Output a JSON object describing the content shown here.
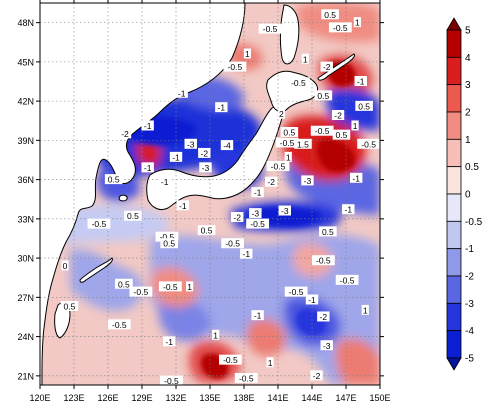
{
  "map": {
    "lat_labels": [
      "48N",
      "45N",
      "42N",
      "39N",
      "36N",
      "33N",
      "30N",
      "27N",
      "24N",
      "21N"
    ],
    "lon_labels": [
      "120E",
      "123E",
      "126E",
      "129E",
      "132E",
      "135E",
      "138E",
      "141E",
      "144E",
      "147E",
      "150E"
    ],
    "lat_range": [
      20,
      50
    ],
    "lon_range": [
      120,
      150
    ],
    "colors": {
      "strong_pos": "#b40000",
      "pos": "#e04a4a",
      "weak_pos": "#f3a6a0",
      "faint_pos": "#fbd9d5",
      "faint_neg": "#d9dcf5",
      "weak_neg": "#9fa6ea",
      "neg": "#4b57e0",
      "strong_neg": "#0a1ed2",
      "land": "#ffffff",
      "coast": "#000000"
    },
    "contour_labels": [
      {
        "text": "-0.5",
        "lon": 131.2,
        "lat": 31.6
      },
      {
        "text": "-0.5",
        "lon": 131.5,
        "lat": 27.8
      },
      {
        "text": "-0.5",
        "lon": 127.0,
        "lat": 24.9
      },
      {
        "text": "-1",
        "lon": 131.4,
        "lat": 23.6
      },
      {
        "text": "0.5",
        "lon": 127.4,
        "lat": 28.0
      },
      {
        "text": "0.5",
        "lon": 122.6,
        "lat": 26.3
      },
      {
        "text": "0",
        "lon": 122.2,
        "lat": 29.4
      },
      {
        "text": "-1",
        "lon": 138.2,
        "lat": 30.3
      },
      {
        "text": "-0.5",
        "lon": 139.2,
        "lat": 32.6
      },
      {
        "text": "-3",
        "lon": 141.6,
        "lat": 33.6
      },
      {
        "text": "-2",
        "lon": 137.4,
        "lat": 33.1
      },
      {
        "text": "-0.5",
        "lon": 147.1,
        "lat": 28.3
      },
      {
        "text": "-1",
        "lon": 144.0,
        "lat": 26.8
      },
      {
        "text": "-2",
        "lon": 145.0,
        "lat": 25.5
      },
      {
        "text": "-3",
        "lon": 145.3,
        "lat": 23.3
      },
      {
        "text": "-0.5",
        "lon": 136.8,
        "lat": 22.2
      },
      {
        "text": "-0.5",
        "lon": 138.2,
        "lat": 20.8
      },
      {
        "text": "-2",
        "lon": 144.4,
        "lat": 21.0
      },
      {
        "text": "-0.5",
        "lon": 131.6,
        "lat": 20.6
      },
      {
        "text": "-1",
        "lon": 139.2,
        "lat": 25.6
      },
      {
        "text": "-0.5",
        "lon": 142.6,
        "lat": 27.4
      },
      {
        "text": "1",
        "lon": 148.7,
        "lat": 26.0
      },
      {
        "text": "1",
        "lon": 135.5,
        "lat": 24.1
      },
      {
        "text": "1",
        "lon": 140.3,
        "lat": 22.0
      },
      {
        "text": "0.5",
        "lon": 145.4,
        "lat": 32.0
      },
      {
        "text": "-0.5",
        "lon": 145.0,
        "lat": 29.8
      },
      {
        "text": "-1",
        "lon": 147.2,
        "lat": 33.7
      },
      {
        "text": "0.5",
        "lon": 134.7,
        "lat": 32.1
      },
      {
        "text": "0.5",
        "lon": 131.4,
        "lat": 31.1
      },
      {
        "text": "1",
        "lon": 133.2,
        "lat": 27.8
      },
      {
        "text": "-0.5",
        "lon": 128.9,
        "lat": 27.4
      },
      {
        "text": "-2",
        "lon": 127.5,
        "lat": 39.5
      },
      {
        "text": "-1",
        "lon": 129.5,
        "lat": 40.1
      },
      {
        "text": "-3",
        "lon": 133.3,
        "lat": 38.7
      },
      {
        "text": "-2",
        "lon": 134.5,
        "lat": 38.0
      },
      {
        "text": "-1",
        "lon": 132.0,
        "lat": 37.7
      },
      {
        "text": "-4",
        "lon": 136.5,
        "lat": 38.6
      },
      {
        "text": "-1",
        "lon": 129.5,
        "lat": 36.9
      },
      {
        "text": "-3",
        "lon": 134.6,
        "lat": 36.9
      },
      {
        "text": "-1",
        "lon": 131.0,
        "lat": 35.8
      },
      {
        "text": "0.5",
        "lon": 126.5,
        "lat": 36.0
      },
      {
        "text": "1",
        "lon": 141.9,
        "lat": 37.7
      },
      {
        "text": "2",
        "lon": 141.3,
        "lat": 41.0
      },
      {
        "text": "0.5",
        "lon": 142.0,
        "lat": 39.6
      },
      {
        "text": "-0.5",
        "lon": 141.8,
        "lat": 38.8
      },
      {
        "text": "1.5",
        "lon": 143.2,
        "lat": 38.7
      },
      {
        "text": "-0.5",
        "lon": 144.9,
        "lat": 39.7
      },
      {
        "text": "0.5",
        "lon": 146.6,
        "lat": 39.4
      },
      {
        "text": "-2",
        "lon": 146.3,
        "lat": 40.9
      },
      {
        "text": "-1",
        "lon": 147.9,
        "lat": 36.1
      },
      {
        "text": "-0.5",
        "lon": 149.0,
        "lat": 38.7
      },
      {
        "text": "1",
        "lon": 147.8,
        "lat": 40.1
      },
      {
        "text": "-2",
        "lon": 140.4,
        "lat": 35.8
      },
      {
        "text": "-3",
        "lon": 143.6,
        "lat": 35.9
      },
      {
        "text": "-1",
        "lon": 139.2,
        "lat": 35.0
      },
      {
        "text": "-0.5",
        "lon": 141.0,
        "lat": 37.0
      },
      {
        "text": "-1",
        "lon": 132.5,
        "lat": 42.6
      },
      {
        "text": "-1",
        "lon": 136.0,
        "lat": 41.5
      },
      {
        "text": "-0.5",
        "lon": 137.2,
        "lat": 44.6
      },
      {
        "text": "-0.5",
        "lon": 140.3,
        "lat": 47.5
      },
      {
        "text": "-0.5",
        "lon": 146.5,
        "lat": 47.6
      },
      {
        "text": "0.5",
        "lon": 145.6,
        "lat": 48.6
      },
      {
        "text": "1",
        "lon": 138.3,
        "lat": 45.6
      },
      {
        "text": "1",
        "lon": 143.4,
        "lat": 45.2
      },
      {
        "text": "-2",
        "lon": 145.3,
        "lat": 44.6
      },
      {
        "text": "-0.5",
        "lon": 142.8,
        "lat": 43.4
      },
      {
        "text": "-1",
        "lon": 148.3,
        "lat": 43.5
      },
      {
        "text": "0.5",
        "lon": 148.6,
        "lat": 41.6
      },
      {
        "text": "1",
        "lon": 148.0,
        "lat": 48.0
      },
      {
        "text": "0.5",
        "lon": 145.0,
        "lat": 42.4
      },
      {
        "text": "-1",
        "lon": 132.6,
        "lat": 34.0
      },
      {
        "text": "-3",
        "lon": 139.0,
        "lat": 33.4
      },
      {
        "text": "-0.5",
        "lon": 137.0,
        "lat": 31.1
      },
      {
        "text": "-0.5",
        "lon": 125.2,
        "lat": 32.6
      },
      {
        "text": "0.5",
        "lon": 128.2,
        "lat": 33.2
      }
    ]
  },
  "colorbar": {
    "labels": [
      "5",
      "4",
      "3",
      "2",
      "1",
      "0.5",
      "0",
      "-0.5",
      "-1",
      "-2",
      "-3",
      "-4",
      "-5"
    ],
    "bins": [
      "#7a0000",
      "#b40000",
      "#d81e1e",
      "#ec5a4f",
      "#f08c82",
      "#f7bfb8",
      "#fbe3df",
      "#e6e8fa",
      "#c2c7f2",
      "#9098e8",
      "#5a66e2",
      "#2535dc",
      "#0a1ed2",
      "#05149a"
    ]
  }
}
